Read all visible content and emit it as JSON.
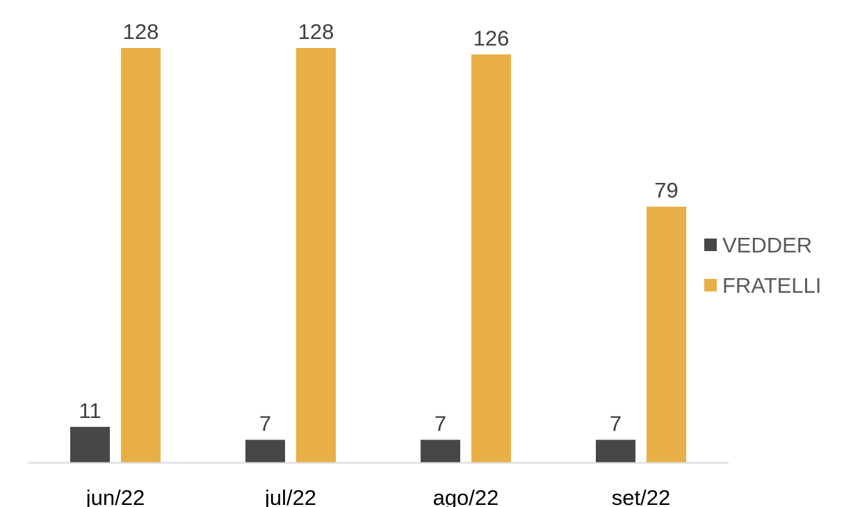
{
  "chart_data": {
    "type": "bar",
    "categories": [
      "jun/22",
      "jul/22",
      "ago/22",
      "set/22"
    ],
    "series": [
      {
        "name": "VEDDER",
        "values": [
          11,
          7,
          7,
          7
        ],
        "color": "#474747"
      },
      {
        "name": "FRATELLI",
        "values": [
          128,
          128,
          126,
          79
        ],
        "color": "#E9AF47"
      }
    ],
    "ylim": [
      0,
      128
    ],
    "grid": false,
    "legend_position": "right",
    "data_labels": true,
    "axis_color": "#D9D9D9"
  }
}
